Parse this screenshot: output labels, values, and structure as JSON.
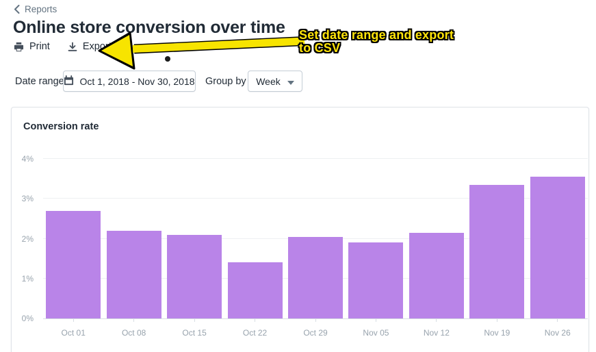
{
  "breadcrumb": {
    "label": "Reports"
  },
  "header": {
    "title": "Online store conversion over time",
    "print_label": "Print",
    "export_label": "Export"
  },
  "annotation": {
    "line1": "Set date range and export",
    "line2": "to CSV",
    "color": "#ffe40a",
    "arrow_color": "#f7e400"
  },
  "controls": {
    "date_range_label": "Date range",
    "date_range_value": "Oct 1, 2018 - Nov 30, 2018",
    "group_by_label": "Group by",
    "group_by_value": "Week"
  },
  "chart_data": {
    "type": "bar",
    "title": "Conversion rate",
    "categories": [
      "Oct 01",
      "Oct 08",
      "Oct 15",
      "Oct 22",
      "Oct 29",
      "Nov 05",
      "Nov 12",
      "Nov 19",
      "Nov 26"
    ],
    "values": [
      2.7,
      2.2,
      2.1,
      1.4,
      2.05,
      1.9,
      2.15,
      3.35,
      3.55
    ],
    "unit": "%",
    "ylim": [
      0,
      4
    ],
    "yticks": [
      0,
      1,
      2,
      3,
      4
    ],
    "ytick_labels": [
      "0%",
      "1%",
      "2%",
      "3%",
      "4%"
    ],
    "bar_color": "#b984e8",
    "grid": true,
    "legend": "none"
  }
}
